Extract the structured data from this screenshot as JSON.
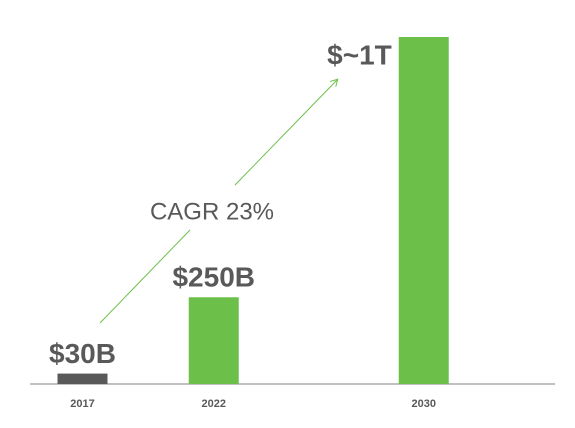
{
  "chart_data": {
    "type": "bar",
    "x": [
      2017,
      2022,
      2030
    ],
    "values": [
      30,
      250,
      1000
    ],
    "value_labels": [
      "$30B",
      "$250B",
      "$~1T"
    ],
    "colors": [
      "#595959",
      "#6cc04a",
      "#6cc04a"
    ],
    "xlim": [
      2015,
      2035
    ],
    "ylim": [
      0,
      1000
    ],
    "annotation": "CAGR 23%"
  }
}
